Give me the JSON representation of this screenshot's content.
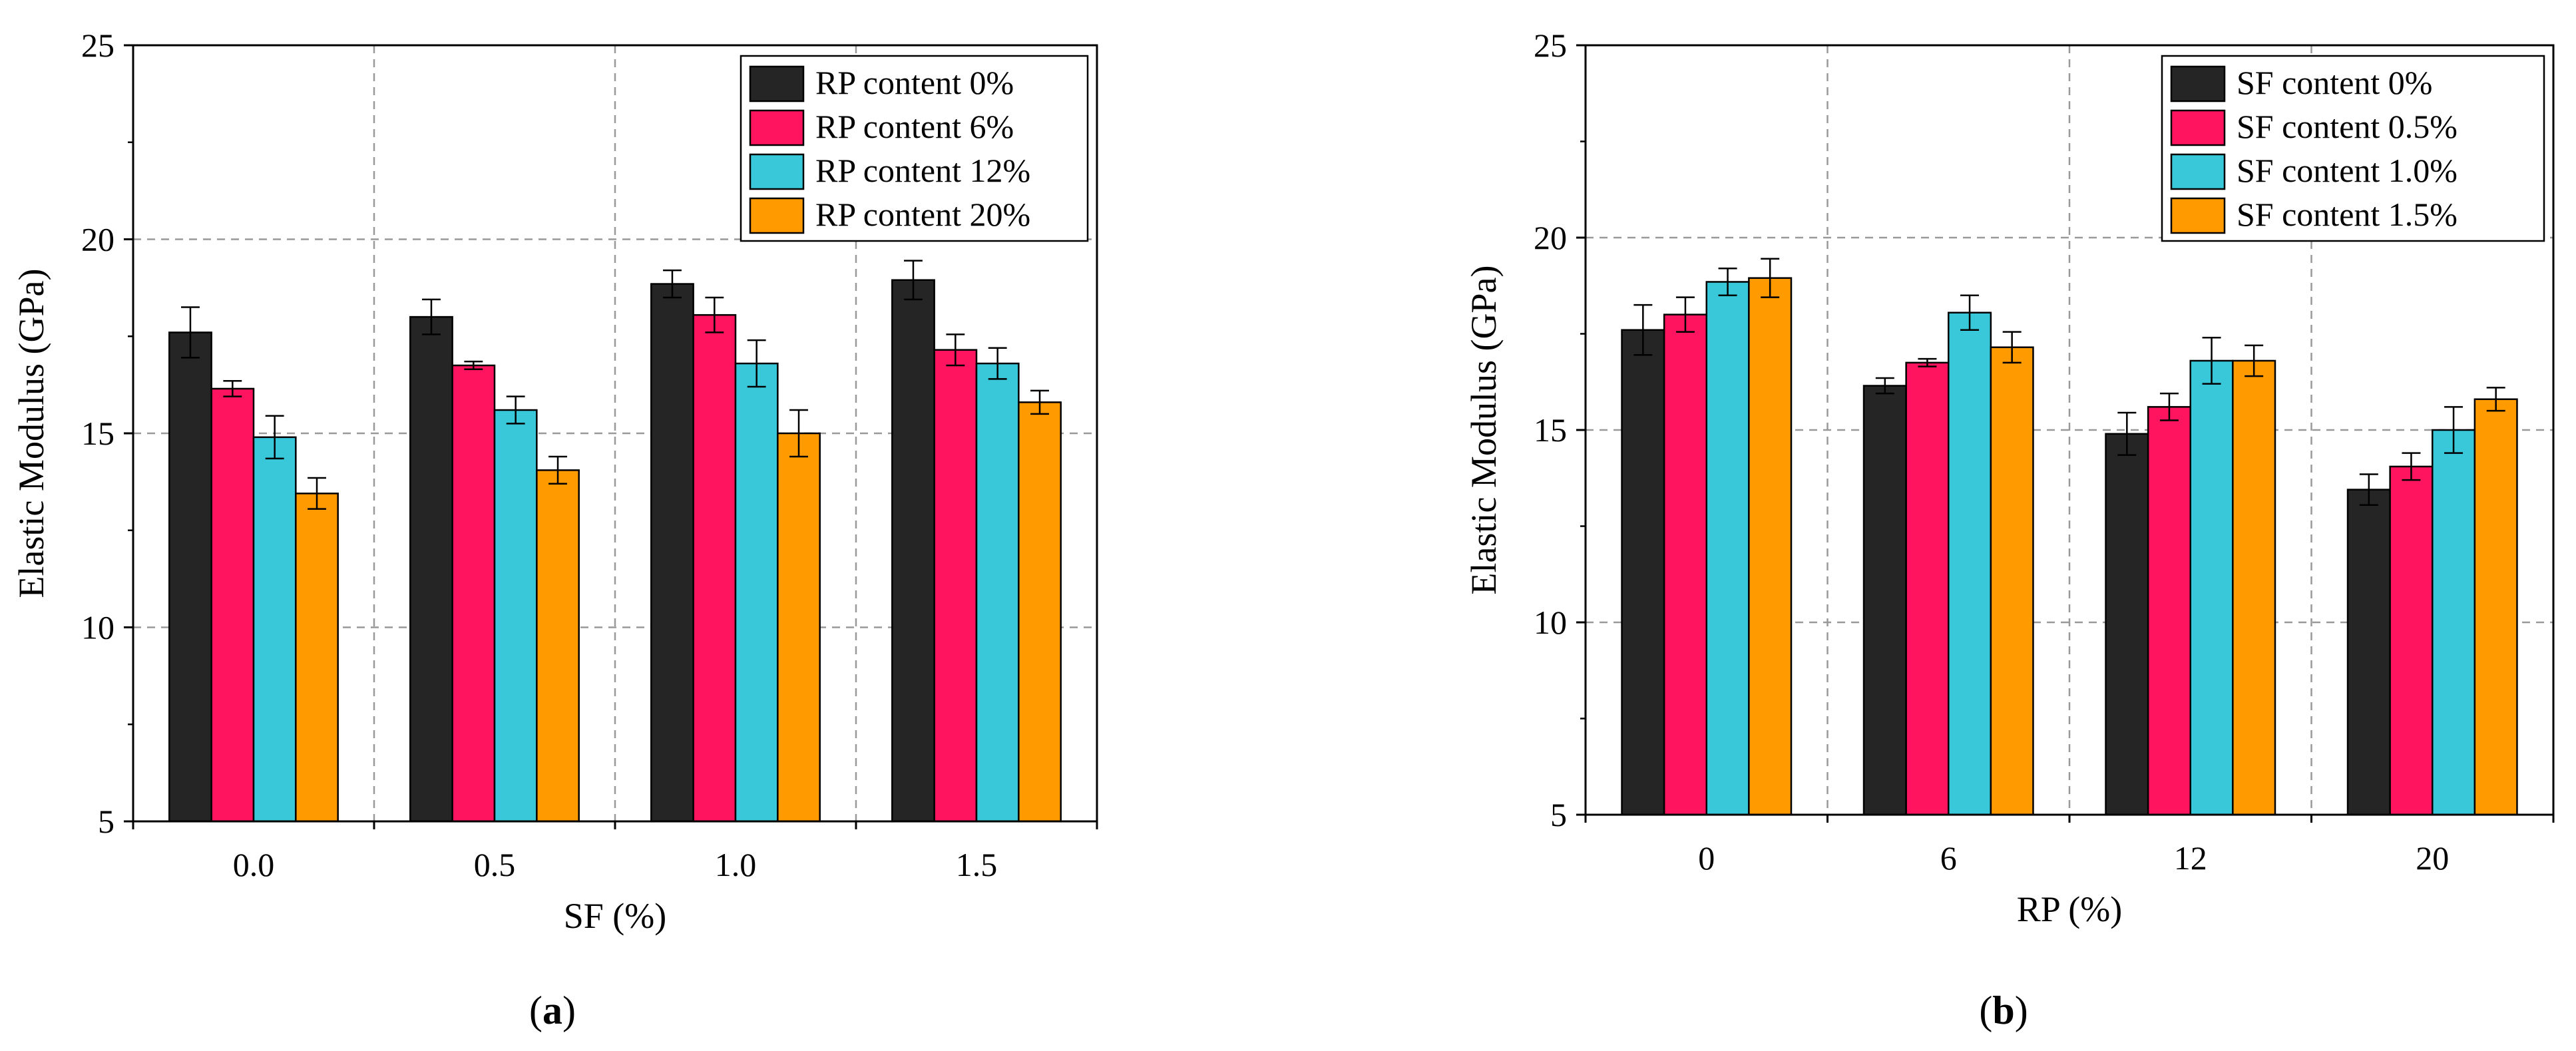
{
  "chart_data": [
    {
      "type": "bar",
      "panel_label": "a",
      "xlabel": "SF (%)",
      "ylabel": "Elastic Modulus (GPa)",
      "categories": [
        "0.0",
        "0.5",
        "1.0",
        "1.5"
      ],
      "ylim": [
        5,
        25
      ],
      "yticks": [
        "5",
        "10",
        "15",
        "20",
        "25"
      ],
      "grid": true,
      "legend_position": "top-right",
      "series": [
        {
          "name": "RP content 0%",
          "color": "#252525",
          "values": [
            17.6,
            18.0,
            18.85,
            18.95
          ],
          "errors": [
            0.65,
            0.45,
            0.35,
            0.5
          ]
        },
        {
          "name": "RP content 6%",
          "color": "#FF1460",
          "values": [
            16.15,
            16.75,
            18.05,
            17.15
          ],
          "errors": [
            0.2,
            0.1,
            0.45,
            0.4
          ]
        },
        {
          "name": "RP content 12%",
          "color": "#38C8D9",
          "values": [
            14.9,
            15.6,
            16.8,
            16.8
          ],
          "errors": [
            0.55,
            0.35,
            0.6,
            0.4
          ]
        },
        {
          "name": "RP content 20%",
          "color": "#FF9A00",
          "values": [
            13.45,
            14.05,
            15.0,
            15.8
          ],
          "errors": [
            0.4,
            0.35,
            0.6,
            0.3
          ]
        }
      ]
    },
    {
      "type": "bar",
      "panel_label": "b",
      "xlabel": "RP (%)",
      "ylabel": "Elastic Modulus (GPa)",
      "categories": [
        "0",
        "6",
        "12",
        "20"
      ],
      "ylim": [
        5,
        25
      ],
      "yticks": [
        "5",
        "10",
        "15",
        "20",
        "25"
      ],
      "grid": true,
      "legend_position": "top-right",
      "series": [
        {
          "name": "SF content 0%",
          "color": "#252525",
          "values": [
            17.6,
            16.15,
            14.9,
            13.45
          ],
          "errors": [
            0.65,
            0.2,
            0.55,
            0.4
          ]
        },
        {
          "name": "SF content 0.5%",
          "color": "#FF1460",
          "values": [
            18.0,
            16.75,
            15.6,
            14.05
          ],
          "errors": [
            0.45,
            0.1,
            0.35,
            0.35
          ]
        },
        {
          "name": "SF content 1.0%",
          "color": "#38C8D9",
          "values": [
            18.85,
            18.05,
            16.8,
            15.0
          ],
          "errors": [
            0.35,
            0.45,
            0.6,
            0.6
          ]
        },
        {
          "name": "SF content 1.5%",
          "color": "#FF9A00",
          "values": [
            18.95,
            17.15,
            16.8,
            15.8
          ],
          "errors": [
            0.5,
            0.4,
            0.4,
            0.3
          ]
        }
      ]
    }
  ]
}
